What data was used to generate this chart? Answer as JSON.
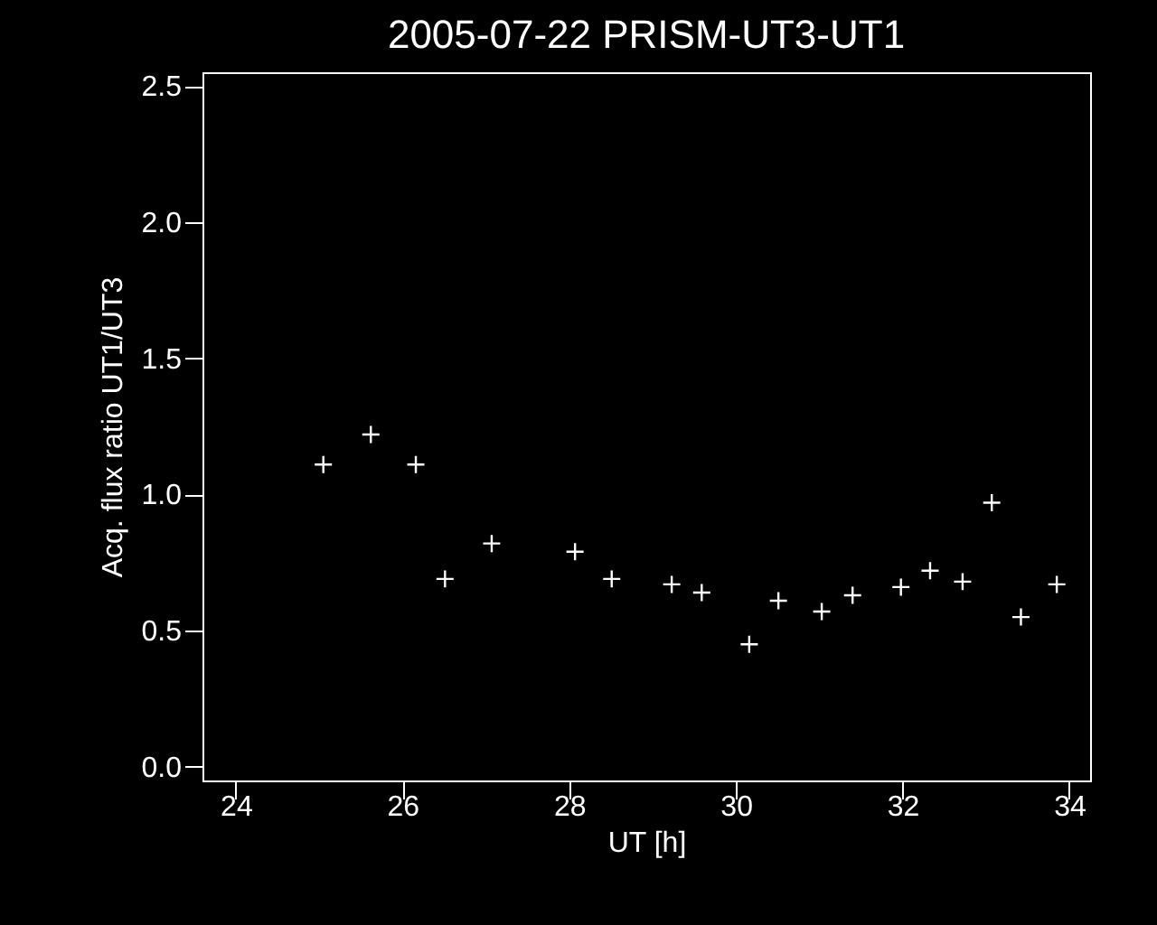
{
  "chart_data": {
    "type": "scatter",
    "title": "2005-07-22 PRISM-UT3-UT1",
    "xlabel": "UT [h]",
    "ylabel": "Acq. flux ratio UT1/UT3",
    "x": [
      25.05,
      25.62,
      26.16,
      26.51,
      27.07,
      28.07,
      28.51,
      29.23,
      29.59,
      30.16,
      30.51,
      31.03,
      31.4,
      31.98,
      32.33,
      32.72,
      33.07,
      33.42,
      33.85
    ],
    "values": [
      1.11,
      1.22,
      1.11,
      0.69,
      0.82,
      0.79,
      0.69,
      0.67,
      0.64,
      0.45,
      0.61,
      0.57,
      0.63,
      0.66,
      0.72,
      0.68,
      0.97,
      0.55,
      0.67
    ],
    "color": "#ffffff",
    "marker": "cross",
    "xlim": [
      23.6,
      34.25
    ],
    "ylim": [
      -0.05,
      2.55
    ],
    "xticks": [
      24,
      26,
      28,
      30,
      32,
      34
    ],
    "yticks": [
      {
        "value": 0,
        "label": "0.0"
      },
      0.5,
      {
        "value": 1,
        "label": "1.0"
      },
      1.5,
      {
        "value": 2,
        "label": "2.0"
      },
      2.5
    ]
  }
}
